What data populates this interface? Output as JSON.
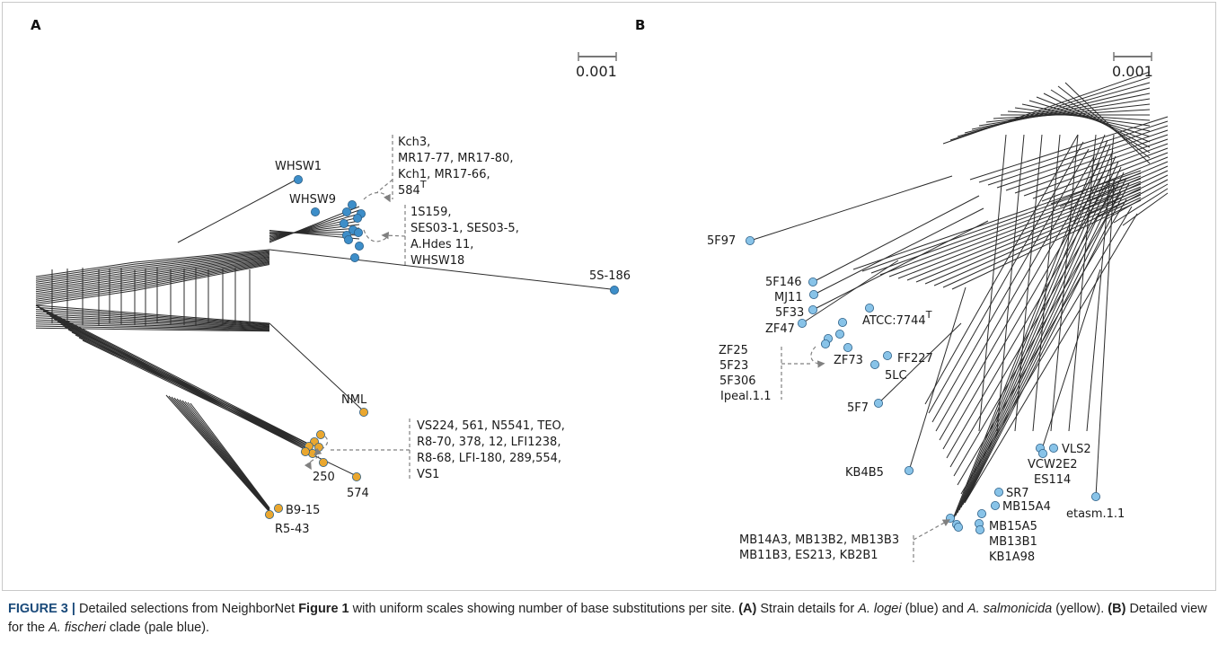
{
  "colors": {
    "blue": "#3d8ec9",
    "yellow": "#eaa72f",
    "pale_blue": "#88c3e8",
    "edge": "#2b2b2b",
    "leader": "#808080"
  },
  "panelA": {
    "letter": "A",
    "scale_label": "0.001",
    "labels": {
      "whsw1": "WHSW1",
      "whsw9": "WHSW9",
      "s5186": "5S-186",
      "nml": "NML",
      "l250": "250",
      "l574": "574",
      "b915": "B9-15",
      "r543": "R5-43",
      "g1_l1": "Kch3,",
      "g1_l2": "MR17-77, MR17-80,",
      "g1_l3": "Kch1, MR17-66,",
      "g1_l4": "584",
      "g1_sup": "T",
      "g2_l1": "1S159,",
      "g2_l2": "SES03-1, SES03-5,",
      "g2_l3": "A.Hdes 11,",
      "g2_l4": "WHSW18",
      "g3_l1": "VS224, 561, N5541, TEO,",
      "g3_l2": "R8-70, 378, 12, LFI1238,",
      "g3_l3": "R8-68, LFI-180, 289,554,",
      "g3_l4": "VS1"
    }
  },
  "panelB": {
    "letter": "B",
    "scale_label": "0.001",
    "labels": {
      "f97": "5F97",
      "f146": "5F146",
      "mj11": "MJ11",
      "f33": "5F33",
      "zf47": "ZF47",
      "atcc": "ATCC:7744",
      "atcc_sup": "T",
      "zf73": "ZF73",
      "ff227": "FF227",
      "lc5": "5LC",
      "f7": "5F7",
      "kb4b5": "KB4B5",
      "vls2": "VLS2",
      "vcw2e2": "VCW2E2",
      "es114": "ES114",
      "sr7": "SR7",
      "mb15a4": "MB15A4",
      "mb15a5": "MB15A5",
      "mb13b1": "MB13B1",
      "kb1a98": "KB1A98",
      "etasm": "etasm.1.1",
      "g1_l1": "ZF25",
      "g1_l2": "5F23",
      "g1_l3": "5F306",
      "g1_l4": "Ipeal.1.1",
      "g2_l1": "MB14A3, MB13B2, MB13B3",
      "g2_l2": "MB11B3, ES213, KB2B1"
    }
  },
  "caption": {
    "figure_label": "FIGURE 3 |",
    "text_1": "Detailed selections from NeighborNet",
    "text_1b": "Figure 1",
    "text_2": "with uniform scales showing number of base substitutions per site.",
    "text_3": "(A)",
    "text_4": "Strain details for",
    "text_5": "A. logei",
    "text_6": "(blue) and",
    "text_7": "A. salmonicida",
    "text_8": "(yellow).",
    "text_9": "(B)",
    "text_10": "Detailed view for the",
    "text_11": "A. fischeri",
    "text_12": "clade (pale blue)."
  }
}
